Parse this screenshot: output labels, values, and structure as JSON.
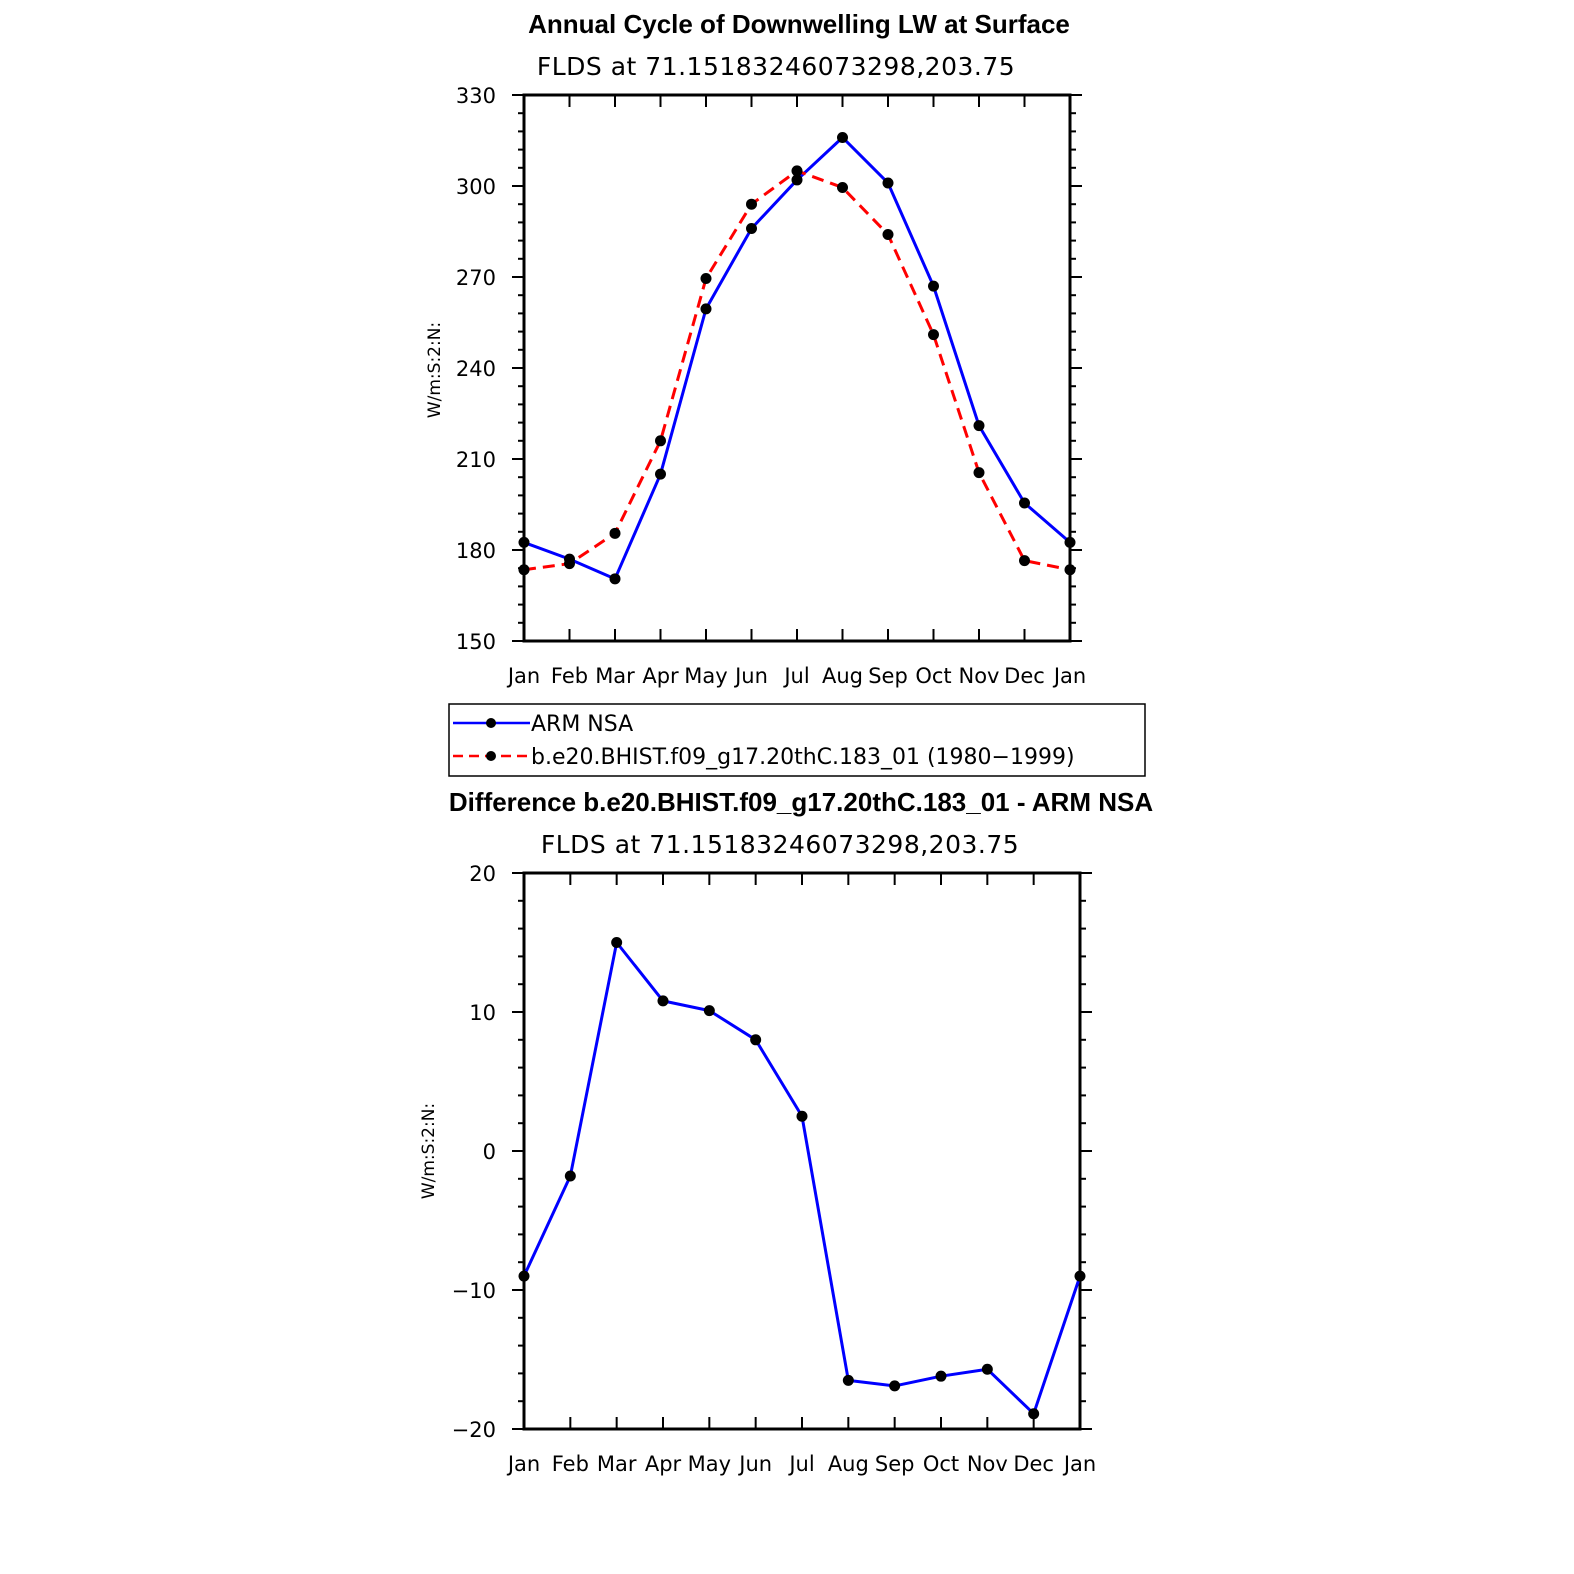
{
  "chart_data": [
    {
      "type": "line",
      "title": "Annual Cycle of Downwelling LW at Surface",
      "subtitle": "FLDS at 71.15183246073298,203.75",
      "ylabel": "W/m:S:2:N:",
      "xlabel": "",
      "categories": [
        "Jan",
        "Feb",
        "Mar",
        "Apr",
        "May",
        "Jun",
        "Jul",
        "Aug",
        "Sep",
        "Oct",
        "Nov",
        "Dec",
        "Jan"
      ],
      "ylim": [
        150,
        330
      ],
      "yticks": [
        150,
        180,
        210,
        240,
        270,
        300,
        330
      ],
      "series": [
        {
          "name": "ARM NSA",
          "color": "#0000ff",
          "dash": "solid",
          "values": [
            182.5,
            177,
            170.5,
            205,
            259.5,
            286,
            302,
            316,
            301,
            267,
            221,
            195.5,
            182.5
          ]
        },
        {
          "name": "b.e20.BHIST.f09_g17.20thC.183_01 (1980−1999)",
          "color": "#ff0000",
          "dash": "dashed",
          "values": [
            173.5,
            175.5,
            185.5,
            216,
            269.5,
            294,
            305,
            299.5,
            284,
            251,
            205.5,
            176.5,
            173.5
          ]
        }
      ],
      "legend": "bottom",
      "grid": false
    },
    {
      "type": "line",
      "title": "Difference b.e20.BHIST.f09_g17.20thC.183_01 - ARM NSA",
      "subtitle": "FLDS at 71.15183246073298,203.75",
      "ylabel": "W/m:S:2:N:",
      "xlabel": "",
      "categories": [
        "Jan",
        "Feb",
        "Mar",
        "Apr",
        "May",
        "Jun",
        "Jul",
        "Aug",
        "Sep",
        "Oct",
        "Nov",
        "Dec",
        "Jan"
      ],
      "ylim": [
        -20,
        20
      ],
      "yticks": [
        -20,
        -10,
        0,
        10,
        20
      ],
      "ytick_labels": [
        "−20",
        "−10",
        "0",
        "10",
        "20"
      ],
      "series": [
        {
          "color": "#0000ff",
          "dash": "solid",
          "values": [
            -9,
            -1.8,
            15,
            10.8,
            10.1,
            8,
            2.5,
            -16.5,
            -16.9,
            -16.2,
            -15.7,
            -18.9,
            -9
          ]
        }
      ],
      "grid": false
    }
  ]
}
